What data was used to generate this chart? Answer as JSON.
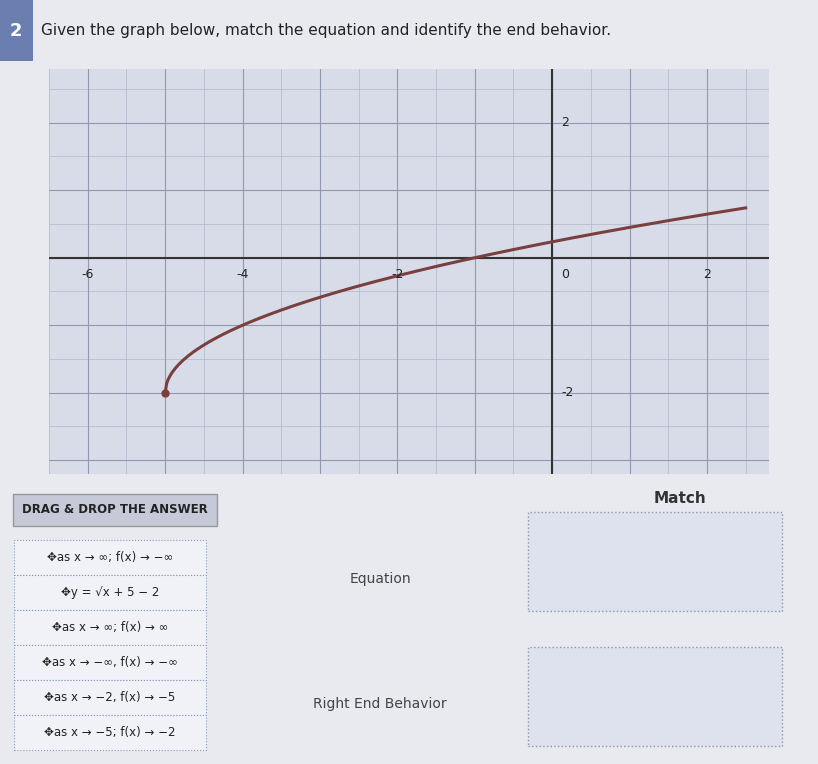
{
  "title": "Given the graph below, match the equation and identify the end behavior.",
  "question_number": "2",
  "bg_color": "#f0f0f0",
  "graph_bg": "#d8dce8",
  "grid_color": "#b0b8cc",
  "axis_color": "#333333",
  "curve_color": "#7a4040",
  "curve_start_x": -5.0,
  "curve_end_x": 2.5,
  "x_ticks": [
    -6,
    -4,
    -2,
    0,
    2
  ],
  "y_ticks": [
    -2,
    0,
    2
  ],
  "xlim": [
    -6.5,
    2.8
  ],
  "ylim": [
    -3.2,
    2.8
  ],
  "drag_label": "DRAG & DROP THE ANSWER",
  "drag_bg": "#c8cdd8",
  "drag_items": [
    "✥as x → ∞; f(x) → −∞",
    "✥y = √x + 5 − 2",
    "✥as x → ∞; f(x) → ∞",
    "✥as x → −∞, f(x) → −∞",
    "✥as x → −2, f(x) → −5",
    "✥as x → −5; f(x) → −2"
  ],
  "match_label": "Match",
  "equation_label": "Equation",
  "right_end_label": "Right End Behavior",
  "drop_box_color": "#dde2ee",
  "drop_box_border": "#8899aa"
}
